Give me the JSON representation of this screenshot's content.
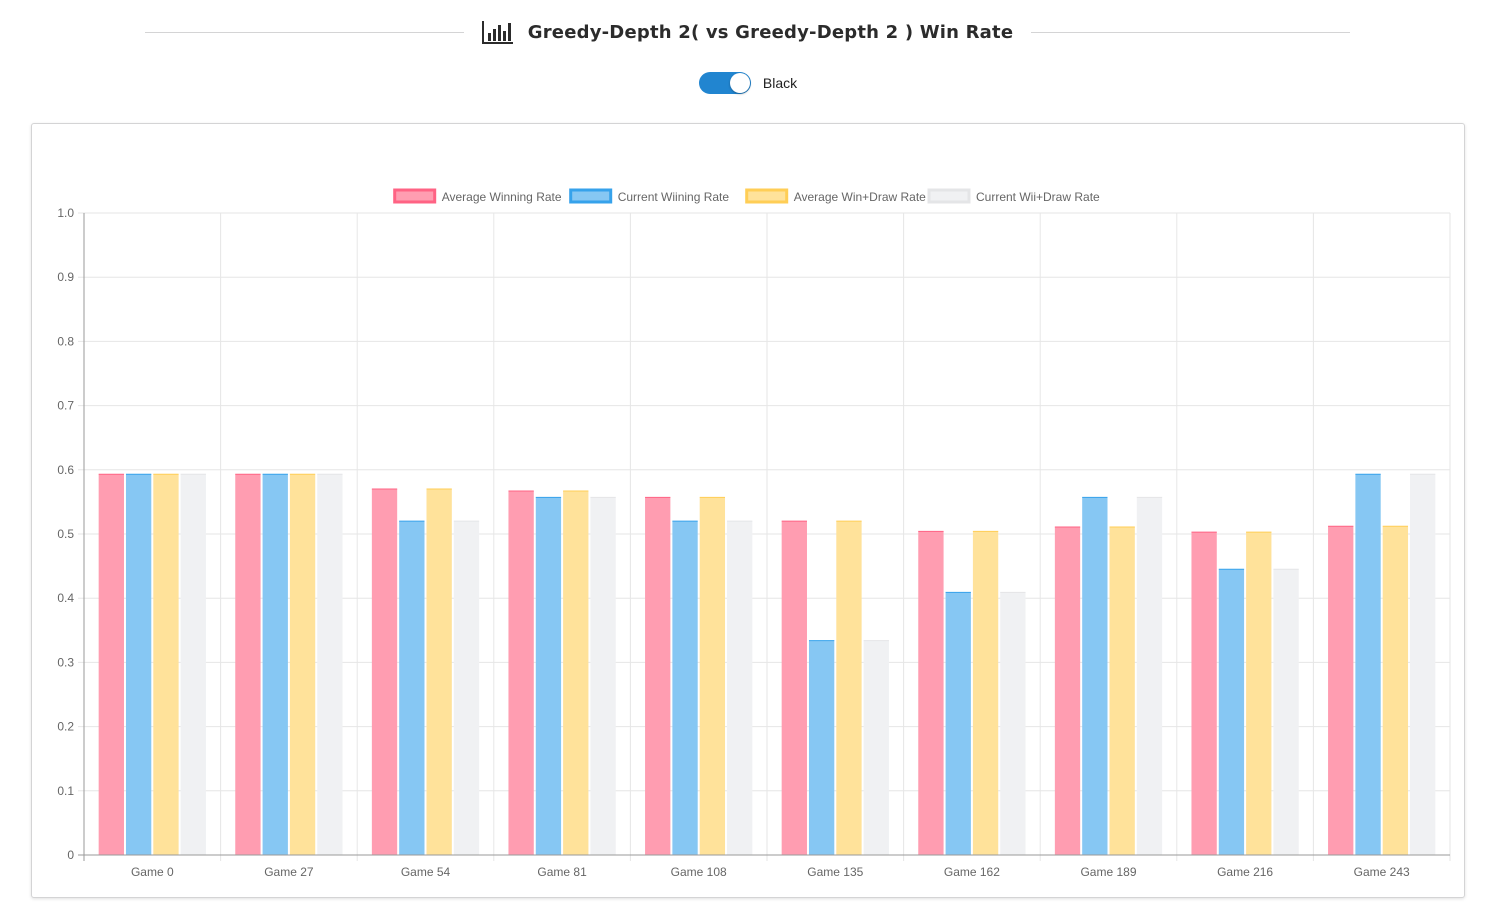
{
  "header": {
    "title": "Greedy-Depth 2( vs Greedy-Depth 2 ) Win Rate",
    "icon": "bar-chart-icon"
  },
  "toggle": {
    "label": "Black",
    "on": true,
    "color": "#2185d0"
  },
  "chart_data": {
    "type": "bar",
    "categories": [
      "Game 0",
      "Game 27",
      "Game 54",
      "Game 81",
      "Game 108",
      "Game 135",
      "Game 162",
      "Game 189",
      "Game 216",
      "Game 243"
    ],
    "series": [
      {
        "name": "Average Winning Rate",
        "fill": "#ff9db1",
        "stroke": "#ff6384",
        "values": [
          0.593,
          0.593,
          0.57,
          0.567,
          0.557,
          0.52,
          0.504,
          0.511,
          0.503,
          0.512
        ]
      },
      {
        "name": "Current Wiining Rate",
        "fill": "#86c7f3",
        "stroke": "#36a2eb",
        "values": [
          0.593,
          0.593,
          0.52,
          0.557,
          0.52,
          0.334,
          0.409,
          0.557,
          0.445,
          0.593
        ]
      },
      {
        "name": "Average Win+Draw Rate",
        "fill": "#ffe29a",
        "stroke": "#ffce56",
        "values": [
          0.593,
          0.593,
          0.57,
          0.567,
          0.557,
          0.52,
          0.504,
          0.511,
          0.503,
          0.512
        ]
      },
      {
        "name": "Current Wii+Draw Rate",
        "fill": "#f0f1f3",
        "stroke": "#e4e5e7",
        "values": [
          0.593,
          0.593,
          0.52,
          0.557,
          0.52,
          0.334,
          0.409,
          0.557,
          0.445,
          0.593
        ]
      }
    ],
    "ylim": [
      0,
      1.0
    ],
    "yticks": [
      "0",
      "0.1",
      "0.2",
      "0.3",
      "0.4",
      "0.5",
      "0.6",
      "0.7",
      "0.8",
      "0.9",
      "1.0"
    ],
    "grid": true,
    "legend_position": "top"
  }
}
